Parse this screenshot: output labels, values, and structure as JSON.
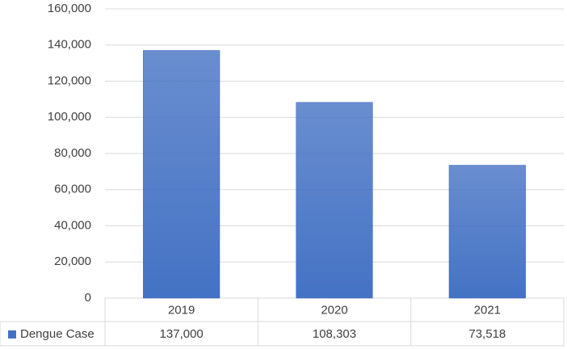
{
  "chart_data": {
    "type": "bar",
    "categories": [
      "2019",
      "2020",
      "2021"
    ],
    "series": [
      {
        "name": "Dengue Case",
        "color": "#4472c4",
        "values": [
          137000,
          108303,
          73518
        ],
        "value_labels": [
          "137,000",
          "108,303",
          "73,518"
        ]
      }
    ],
    "ylim": [
      0,
      160000
    ],
    "yticks": [
      0,
      {
        "value": 20000,
        "label": "20,000"
      },
      {
        "value": 40000,
        "label": "40,000"
      },
      {
        "value": 60000,
        "label": "60,000"
      },
      {
        "value": 80000,
        "label": "80,000"
      },
      {
        "value": 100000,
        "label": "100,000"
      },
      {
        "value": 120000,
        "label": "120,000"
      },
      {
        "value": 140000,
        "label": "140,000"
      },
      {
        "value": 160000,
        "label": "160,000"
      }
    ],
    "grid": true
  }
}
